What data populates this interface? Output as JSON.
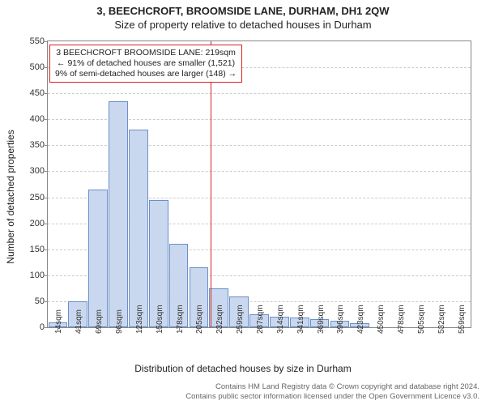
{
  "title": "3, BEECHCROFT, BROOMSIDE LANE, DURHAM, DH1 2QW",
  "subtitle": "Size of property relative to detached houses in Durham",
  "chart": {
    "type": "histogram",
    "ylabel": "Number of detached properties",
    "xlabel": "Distribution of detached houses by size in Durham",
    "ylim": [
      0,
      550
    ],
    "ytick_step": 50,
    "yticks": [
      0,
      50,
      100,
      150,
      200,
      250,
      300,
      350,
      400,
      450,
      500,
      550
    ],
    "xticks": [
      "14sqm",
      "41sqm",
      "69sqm",
      "96sqm",
      "123sqm",
      "150sqm",
      "178sqm",
      "205sqm",
      "232sqm",
      "259sqm",
      "287sqm",
      "314sqm",
      "341sqm",
      "369sqm",
      "396sqm",
      "423sqm",
      "450sqm",
      "478sqm",
      "505sqm",
      "532sqm",
      "559sqm"
    ],
    "values": [
      10,
      50,
      265,
      435,
      380,
      245,
      160,
      115,
      75,
      60,
      25,
      20,
      18,
      15,
      12,
      8,
      0,
      0,
      0,
      0,
      0
    ],
    "bar_fill": "#c9d8ef",
    "bar_border": "#6a8fc9",
    "grid_color": "#cccccc",
    "axis_color": "#888888",
    "background_color": "#ffffff",
    "reference_line": {
      "x_index": 7.6,
      "color": "#d62222"
    },
    "annotation": {
      "lines": [
        "3 BEECHCROFT BROOMSIDE LANE: 219sqm",
        "← 91% of detached houses are smaller (1,521)",
        "9% of semi-detached houses are larger (148) →"
      ],
      "border_color": "#d62222",
      "fontsize": 10.5
    }
  },
  "footer": {
    "line1": "Contains HM Land Registry data © Crown copyright and database right 2024.",
    "line2": "Contains public sector information licensed under the Open Government Licence v3.0."
  }
}
